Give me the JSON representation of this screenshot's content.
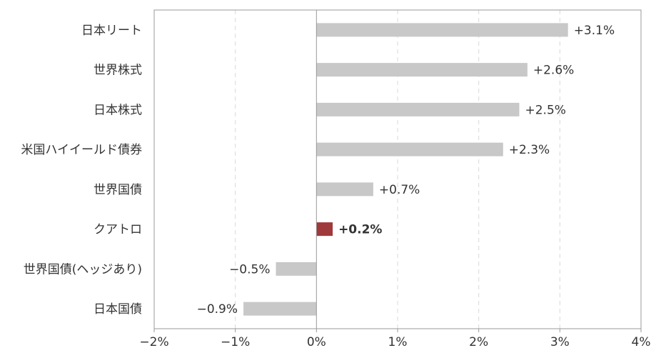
{
  "chart_data": {
    "type": "bar",
    "orientation": "horizontal",
    "categories": [
      "日本リート",
      "世界株式",
      "日本株式",
      "米国ハイイールド債券",
      "世界国債",
      "クアトロ",
      "世界国債(ヘッジあり)",
      "日本国債"
    ],
    "values": [
      3.1,
      2.6,
      2.5,
      2.3,
      0.7,
      0.2,
      -0.5,
      -0.9
    ],
    "value_labels": [
      "+3.1%",
      "+2.6%",
      "+2.5%",
      "+2.3%",
      "+0.7%",
      "+0.2%",
      "−0.5%",
      "−0.9%"
    ],
    "highlight_category": "クアトロ",
    "xlim": [
      -2,
      4
    ],
    "xticks": [
      -2,
      -1,
      0,
      1,
      2,
      3,
      4
    ],
    "xtick_labels": [
      "−2%",
      "−1%",
      "0%",
      "1%",
      "2%",
      "3%",
      "4%"
    ],
    "grid": "vertical dashed",
    "colors": {
      "bar": "#c8c8c8",
      "highlight": "#a0393c",
      "grid": "#d9d9d9",
      "axis": "#999999"
    },
    "title": "",
    "xlabel": "",
    "ylabel": ""
  }
}
